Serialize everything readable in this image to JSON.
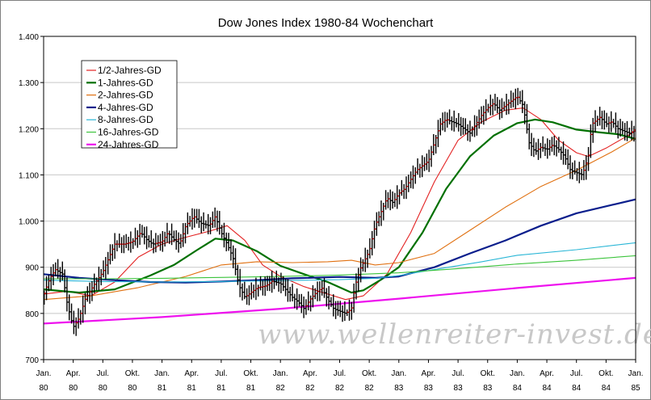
{
  "chart_data": {
    "type": "line",
    "title": "Dow Jones Index 1980-84 Wochenchart",
    "watermark": "www.wellenreiter-invest.de",
    "xlabel": "",
    "ylabel": "",
    "ylim": [
      700,
      1400
    ],
    "xlim": [
      1980.0,
      1985.0
    ],
    "y_ticks": [
      "700",
      "800",
      "900",
      "1.000",
      "1.100",
      "1.200",
      "1.300",
      "1.400"
    ],
    "y_tick_values": [
      700,
      800,
      900,
      1000,
      1100,
      1200,
      1300,
      1400
    ],
    "x_ticks": [
      {
        "month": "Jan.",
        "year": "80",
        "t": 1980.0
      },
      {
        "month": "Apr.",
        "year": "80",
        "t": 1980.25
      },
      {
        "month": "Jul.",
        "year": "80",
        "t": 1980.5
      },
      {
        "month": "Okt.",
        "year": "80",
        "t": 1980.75
      },
      {
        "month": "Jan.",
        "year": "81",
        "t": 1981.0
      },
      {
        "month": "Apr.",
        "year": "81",
        "t": 1981.25
      },
      {
        "month": "Jul.",
        "year": "81",
        "t": 1981.5
      },
      {
        "month": "Okt.",
        "year": "81",
        "t": 1981.75
      },
      {
        "month": "Jan.",
        "year": "82",
        "t": 1982.0
      },
      {
        "month": "Apr.",
        "year": "82",
        "t": 1982.25
      },
      {
        "month": "Jul.",
        "year": "82",
        "t": 1982.5
      },
      {
        "month": "Okt.",
        "year": "82",
        "t": 1982.75
      },
      {
        "month": "Jan.",
        "year": "83",
        "t": 1983.0
      },
      {
        "month": "Apr.",
        "year": "83",
        "t": 1983.25
      },
      {
        "month": "Jul.",
        "year": "83",
        "t": 1983.5
      },
      {
        "month": "Okt.",
        "year": "83",
        "t": 1983.75
      },
      {
        "month": "Jan.",
        "year": "84",
        "t": 1984.0
      },
      {
        "month": "Apr.",
        "year": "84",
        "t": 1984.25
      },
      {
        "month": "Jul.",
        "year": "84",
        "t": 1984.5
      },
      {
        "month": "Okt.",
        "year": "84",
        "t": 1984.75
      },
      {
        "month": "Jan.",
        "year": "85",
        "t": 1985.0
      }
    ],
    "grid": true,
    "legend_position": "top-left",
    "price_series": {
      "name": "",
      "style": "weekly high-low bars",
      "color": "#000000",
      "up_color": "#cc0000",
      "points": [
        [
          1980.0,
          840
        ],
        [
          1980.05,
          875
        ],
        [
          1980.1,
          895
        ],
        [
          1980.16,
          885
        ],
        [
          1980.2,
          820
        ],
        [
          1980.25,
          770
        ],
        [
          1980.3,
          790
        ],
        [
          1980.35,
          830
        ],
        [
          1980.42,
          860
        ],
        [
          1980.5,
          890
        ],
        [
          1980.55,
          920
        ],
        [
          1980.6,
          950
        ],
        [
          1980.68,
          950
        ],
        [
          1980.75,
          955
        ],
        [
          1980.82,
          975
        ],
        [
          1980.87,
          960
        ],
        [
          1980.92,
          950
        ],
        [
          1981.0,
          955
        ],
        [
          1981.05,
          975
        ],
        [
          1981.1,
          960
        ],
        [
          1981.15,
          950
        ],
        [
          1981.2,
          990
        ],
        [
          1981.27,
          1010
        ],
        [
          1981.33,
          995
        ],
        [
          1981.4,
          990
        ],
        [
          1981.45,
          1010
        ],
        [
          1981.5,
          975
        ],
        [
          1981.55,
          950
        ],
        [
          1981.6,
          920
        ],
        [
          1981.65,
          860
        ],
        [
          1981.7,
          835
        ],
        [
          1981.75,
          845
        ],
        [
          1981.8,
          855
        ],
        [
          1981.88,
          860
        ],
        [
          1981.93,
          870
        ],
        [
          1982.0,
          865
        ],
        [
          1982.05,
          850
        ],
        [
          1982.1,
          835
        ],
        [
          1982.15,
          825
        ],
        [
          1982.2,
          810
        ],
        [
          1982.25,
          830
        ],
        [
          1982.3,
          845
        ],
        [
          1982.35,
          855
        ],
        [
          1982.4,
          830
        ],
        [
          1982.45,
          810
        ],
        [
          1982.5,
          805
        ],
        [
          1982.55,
          800
        ],
        [
          1982.6,
          810
        ],
        [
          1982.63,
          860
        ],
        [
          1982.68,
          900
        ],
        [
          1982.75,
          935
        ],
        [
          1982.8,
          990
        ],
        [
          1982.85,
          1020
        ],
        [
          1982.9,
          1050
        ],
        [
          1982.95,
          1040
        ],
        [
          1983.0,
          1060
        ],
        [
          1983.05,
          1070
        ],
        [
          1983.1,
          1090
        ],
        [
          1983.15,
          1110
        ],
        [
          1983.2,
          1120
        ],
        [
          1983.25,
          1130
        ],
        [
          1983.3,
          1170
        ],
        [
          1983.35,
          1210
        ],
        [
          1983.4,
          1220
        ],
        [
          1983.45,
          1215
        ],
        [
          1983.5,
          1210
        ],
        [
          1983.55,
          1200
        ],
        [
          1983.6,
          1190
        ],
        [
          1983.65,
          1210
        ],
        [
          1983.7,
          1230
        ],
        [
          1983.75,
          1245
        ],
        [
          1983.8,
          1255
        ],
        [
          1983.85,
          1240
        ],
        [
          1983.9,
          1250
        ],
        [
          1983.95,
          1260
        ],
        [
          1984.0,
          1270
        ],
        [
          1984.05,
          1250
        ],
        [
          1984.1,
          1170
        ],
        [
          1984.15,
          1150
        ],
        [
          1984.2,
          1160
        ],
        [
          1984.25,
          1155
        ],
        [
          1984.3,
          1165
        ],
        [
          1984.35,
          1155
        ],
        [
          1984.4,
          1140
        ],
        [
          1984.45,
          1110
        ],
        [
          1984.5,
          1105
        ],
        [
          1984.55,
          1100
        ],
        [
          1984.6,
          1140
        ],
        [
          1984.63,
          1210
        ],
        [
          1984.7,
          1225
        ],
        [
          1984.75,
          1210
        ],
        [
          1984.8,
          1215
        ],
        [
          1984.85,
          1200
        ],
        [
          1984.9,
          1195
        ],
        [
          1984.95,
          1190
        ],
        [
          1985.0,
          1200
        ]
      ]
    },
    "series": [
      {
        "name": "1/2-Jahres-GD",
        "color": "#e32222",
        "points": [
          [
            1980.0,
            842
          ],
          [
            1980.2,
            848
          ],
          [
            1980.4,
            838
          ],
          [
            1980.6,
            868
          ],
          [
            1980.8,
            922
          ],
          [
            1981.0,
            950
          ],
          [
            1981.2,
            965
          ],
          [
            1981.4,
            978
          ],
          [
            1981.55,
            990
          ],
          [
            1981.7,
            958
          ],
          [
            1981.85,
            905
          ],
          [
            1982.0,
            880
          ],
          [
            1982.2,
            858
          ],
          [
            1982.4,
            842
          ],
          [
            1982.55,
            830
          ],
          [
            1982.7,
            838
          ],
          [
            1982.9,
            885
          ],
          [
            1983.1,
            975
          ],
          [
            1983.3,
            1085
          ],
          [
            1983.5,
            1175
          ],
          [
            1983.7,
            1215
          ],
          [
            1983.9,
            1240
          ],
          [
            1984.05,
            1245
          ],
          [
            1984.2,
            1220
          ],
          [
            1984.35,
            1175
          ],
          [
            1984.5,
            1148
          ],
          [
            1984.6,
            1140
          ],
          [
            1984.75,
            1158
          ],
          [
            1984.9,
            1180
          ],
          [
            1985.0,
            1195
          ]
        ]
      },
      {
        "name": "1-Jahres-GD",
        "color": "#007000",
        "points": [
          [
            1980.0,
            852
          ],
          [
            1980.3,
            845
          ],
          [
            1980.6,
            852
          ],
          [
            1980.9,
            882
          ],
          [
            1981.1,
            905
          ],
          [
            1981.3,
            938
          ],
          [
            1981.45,
            962
          ],
          [
            1981.6,
            958
          ],
          [
            1981.8,
            935
          ],
          [
            1982.0,
            903
          ],
          [
            1982.2,
            885
          ],
          [
            1982.4,
            868
          ],
          [
            1982.6,
            845
          ],
          [
            1982.7,
            850
          ],
          [
            1982.85,
            873
          ],
          [
            1983.0,
            900
          ],
          [
            1983.2,
            975
          ],
          [
            1983.4,
            1070
          ],
          [
            1983.6,
            1140
          ],
          [
            1983.8,
            1185
          ],
          [
            1984.0,
            1212
          ],
          [
            1984.15,
            1220
          ],
          [
            1984.3,
            1214
          ],
          [
            1984.5,
            1198
          ],
          [
            1984.7,
            1192
          ],
          [
            1984.85,
            1188
          ],
          [
            1985.0,
            1178
          ]
        ]
      },
      {
        "name": "2-Jahres-GD",
        "color": "#e07010",
        "points": [
          [
            1980.0,
            830
          ],
          [
            1980.4,
            838
          ],
          [
            1980.8,
            856
          ],
          [
            1981.2,
            880
          ],
          [
            1981.5,
            905
          ],
          [
            1981.8,
            912
          ],
          [
            1982.1,
            910
          ],
          [
            1982.4,
            912
          ],
          [
            1982.6,
            915
          ],
          [
            1982.8,
            905
          ],
          [
            1983.0,
            910
          ],
          [
            1983.3,
            930
          ],
          [
            1983.6,
            980
          ],
          [
            1983.9,
            1030
          ],
          [
            1984.2,
            1075
          ],
          [
            1984.5,
            1110
          ],
          [
            1984.8,
            1150
          ],
          [
            1985.0,
            1180
          ]
        ]
      },
      {
        "name": "4-Jahres-GD",
        "color": "#0a1e8c",
        "points": [
          [
            1980.0,
            885
          ],
          [
            1980.3,
            877
          ],
          [
            1980.6,
            872
          ],
          [
            1980.9,
            868
          ],
          [
            1981.2,
            867
          ],
          [
            1981.5,
            869
          ],
          [
            1981.8,
            872
          ],
          [
            1982.1,
            876
          ],
          [
            1982.5,
            879
          ],
          [
            1982.8,
            877
          ],
          [
            1983.0,
            880
          ],
          [
            1983.3,
            900
          ],
          [
            1983.6,
            930
          ],
          [
            1983.9,
            958
          ],
          [
            1984.2,
            990
          ],
          [
            1984.5,
            1017
          ],
          [
            1984.8,
            1035
          ],
          [
            1985.0,
            1047
          ]
        ]
      },
      {
        "name": "8-Jahres-GD",
        "color": "#29b6d6",
        "points": [
          [
            1980.0,
            872
          ],
          [
            1980.5,
            869
          ],
          [
            1981.0,
            868
          ],
          [
            1981.5,
            869
          ],
          [
            1982.0,
            871
          ],
          [
            1982.5,
            873
          ],
          [
            1982.8,
            876
          ],
          [
            1983.0,
            882
          ],
          [
            1983.3,
            895
          ],
          [
            1983.7,
            912
          ],
          [
            1984.0,
            926
          ],
          [
            1984.5,
            938
          ],
          [
            1985.0,
            953
          ]
        ]
      },
      {
        "name": "16-Jahres-GD",
        "color": "#3cc43c",
        "points": [
          [
            1980.0,
            875
          ],
          [
            1980.5,
            875
          ],
          [
            1981.0,
            876
          ],
          [
            1981.5,
            878
          ],
          [
            1982.0,
            880
          ],
          [
            1982.5,
            883
          ],
          [
            1983.0,
            888
          ],
          [
            1983.5,
            897
          ],
          [
            1984.0,
            907
          ],
          [
            1984.5,
            915
          ],
          [
            1985.0,
            925
          ]
        ]
      },
      {
        "name": "24-Jahres-GD",
        "color": "#ee11ee",
        "points": [
          [
            1980.0,
            778
          ],
          [
            1981.0,
            792
          ],
          [
            1982.0,
            810
          ],
          [
            1983.0,
            832
          ],
          [
            1984.0,
            855
          ],
          [
            1985.0,
            877
          ]
        ]
      }
    ]
  }
}
